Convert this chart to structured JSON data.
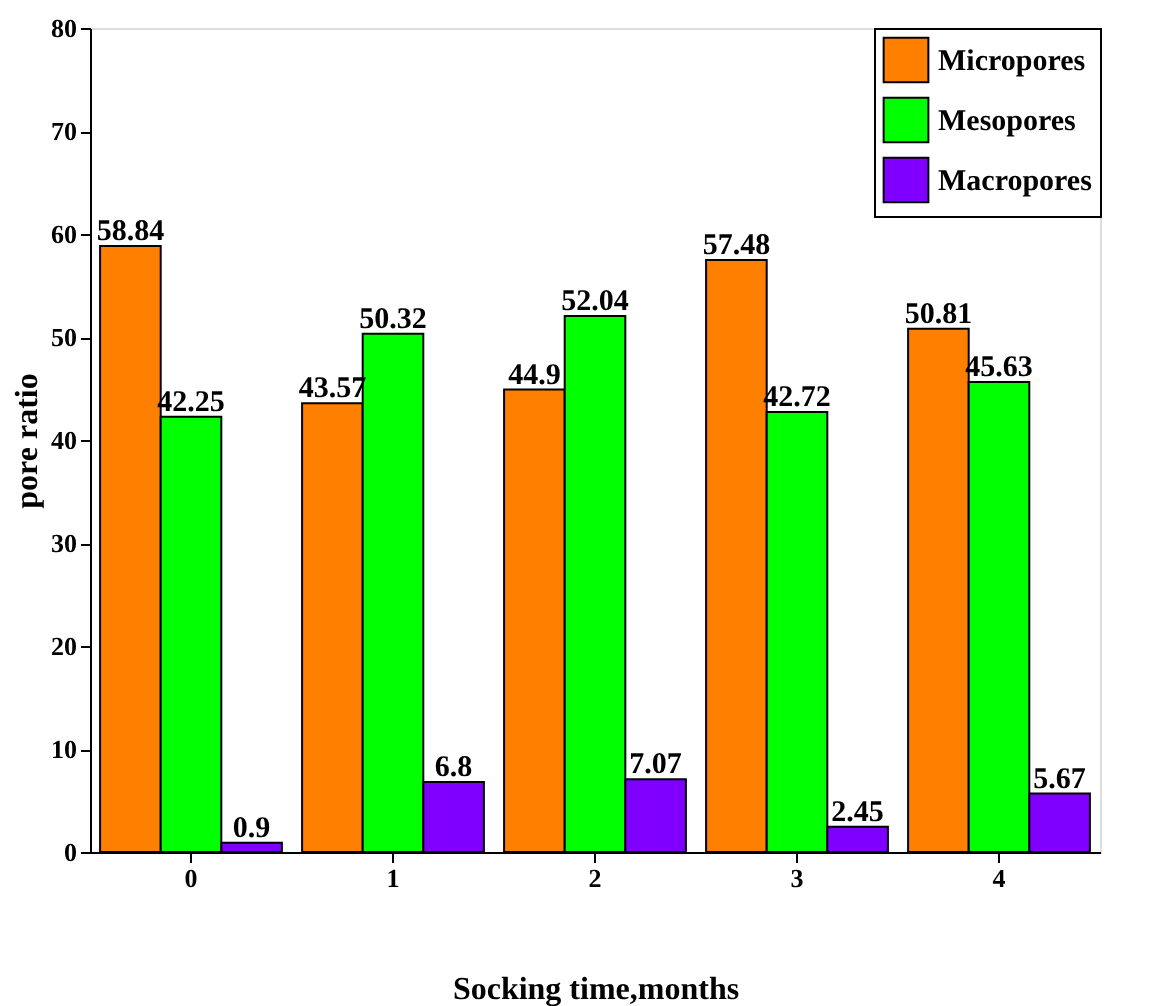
{
  "chart_data": {
    "type": "bar",
    "xlabel": "Socking time,months",
    "ylabel": "pore ratio",
    "categories": [
      "0",
      "1",
      "2",
      "3",
      "4"
    ],
    "series": [
      {
        "name": "Micropores",
        "color": "#ff7f00",
        "values": [
          58.84,
          43.57,
          44.9,
          57.48,
          50.81
        ]
      },
      {
        "name": "Mesopores",
        "color": "#00ff00",
        "values": [
          42.25,
          50.32,
          52.04,
          42.72,
          45.63
        ]
      },
      {
        "name": "Macropores",
        "color": "#8000ff",
        "values": [
          0.9,
          6.8,
          7.07,
          2.45,
          5.67
        ]
      }
    ],
    "ylim": [
      0,
      80
    ],
    "yticks": [
      0,
      10,
      20,
      30,
      40,
      50,
      60,
      70,
      80
    ],
    "data_labels": true,
    "grid": false,
    "legend": "top right"
  }
}
